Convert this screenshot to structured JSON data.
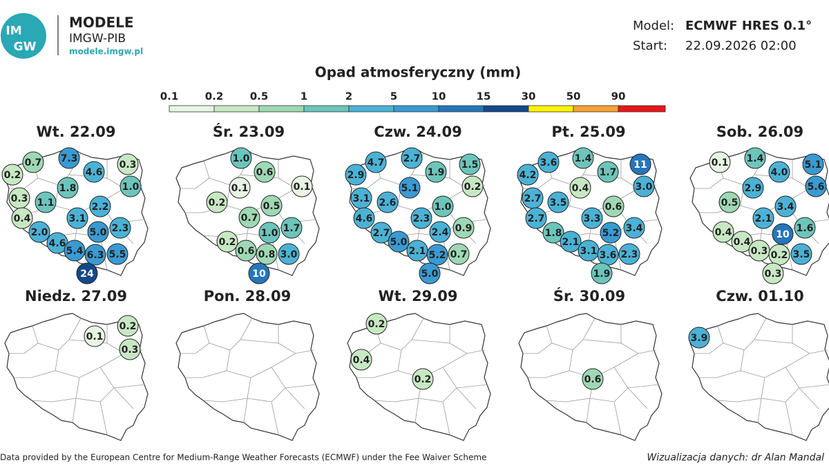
{
  "header": {
    "logo": [
      "IM",
      "GW"
    ],
    "brand": "MODELE",
    "org": "IMGW-PIB",
    "url": "modele.imgw.pl",
    "model_label": "Model:",
    "model": "ECMWF HRES 0.1°",
    "start_label": "Start:",
    "start": "22.09.2026 02:00"
  },
  "legend": {
    "title": "Opad atmosferyczny (mm)",
    "ticks": [
      0.1,
      0.2,
      0.5,
      1,
      2,
      5,
      10,
      15,
      30,
      50,
      90
    ],
    "colors": [
      "#e8f5e4",
      "#c8e8c4",
      "#9fd8b4",
      "#6cc5bb",
      "#4bb2d6",
      "#3a9ad2",
      "#2676bb",
      "#13498a",
      "#fff200",
      "#f7a233",
      "#e8161b"
    ]
  },
  "maps": [
    {
      "title": "Wt. 22.09",
      "values": [
        0.7,
        7.3,
        4.6,
        0.3,
        0.2,
        1.0,
        1.8,
        0.3,
        1.1,
        2.2,
        0.4,
        3.1,
        5.0,
        2.3,
        2.0,
        4.6,
        5.4,
        6.3,
        5.5,
        24
      ],
      "value_labels": [
        "0.7",
        "7.3",
        "4.6",
        "0.3",
        "0.2",
        "1.0",
        "1.8",
        "0.3",
        "1.1",
        "2.2",
        "0.4",
        "3.1",
        "5.0",
        "2.3",
        "2.0",
        "4.6",
        "5.4",
        "6.3",
        "5.5",
        "24"
      ]
    },
    {
      "title": "Śr. 23.09",
      "values": [
        1.0,
        0.6,
        0.1,
        0.1,
        0.2,
        0.5,
        0.7,
        1.0,
        1.7,
        0.2,
        0.6,
        0.8,
        3.0,
        10
      ],
      "value_labels": [
        "1.0",
        "0.6",
        "0.1",
        "0.1",
        "0.2",
        "0.5",
        "0.7",
        "1.0",
        "1.7",
        "0.2",
        "0.6",
        "0.8",
        "3.0",
        "10"
      ]
    },
    {
      "title": "Czw. 24.09",
      "values": [
        4.7,
        2.7,
        1.9,
        1.5,
        2.9,
        5.1,
        0.2,
        3.1,
        2.6,
        1.0,
        4.6,
        2.3,
        2.7,
        2.4,
        0.9,
        5.0,
        2.1,
        5.2,
        0.7,
        5.0
      ],
      "value_labels": [
        "4.7",
        "2.7",
        "1.9",
        "1.5",
        "2.9",
        "5.1",
        "0.2",
        "3.1",
        "2.6",
        "1.0",
        "4.6",
        "2.3",
        "2.7",
        "2.4",
        "0.9",
        "5.0",
        "2.1",
        "5.2",
        "0.7",
        "5.0"
      ]
    },
    {
      "title": "Pt. 25.09",
      "values": [
        3.6,
        1.4,
        1.7,
        11,
        4.2,
        0.4,
        3.0,
        2.7,
        3.5,
        0.6,
        2.7,
        3.3,
        5.2,
        3.4,
        1.8,
        2.1,
        3.1,
        3.6,
        2.3,
        1.9
      ],
      "value_labels": [
        "3.6",
        "1.4",
        "1.7",
        "11",
        "4.2",
        "0.4",
        "3.0",
        "2.7",
        "3.5",
        "0.6",
        "2.7",
        "3.3",
        "5.2",
        "3.4",
        "1.8",
        "2.1",
        "3.1",
        "3.6",
        "2.3",
        "1.9"
      ]
    },
    {
      "title": "Sob. 26.09",
      "values": [
        0.1,
        1.4,
        4.0,
        5.1,
        2.9,
        5.6,
        0.5,
        3.4,
        2.1,
        10,
        1.6,
        0.4,
        0.4,
        0.3,
        0.2,
        3.5,
        0.3
      ],
      "value_labels": [
        "0.1",
        "1.4",
        "4.0",
        "5.1",
        "2.9",
        "5.6",
        "0.5",
        "3.4",
        "2.1",
        "10",
        "1.6",
        "0.4",
        "0.4",
        "0.3",
        "0.2",
        "3.5",
        "0.3"
      ]
    },
    {
      "title": "Niedz. 27.09",
      "values": [
        0.1,
        0.2,
        0.3
      ],
      "value_labels": [
        "0.1",
        "0.2",
        "0.3"
      ]
    },
    {
      "title": "Pon. 28.09",
      "values": [],
      "value_labels": []
    },
    {
      "title": "Wt. 29.09",
      "values": [
        0.2,
        0.4,
        0.2
      ],
      "value_labels": [
        "0.2",
        "0.4",
        "0.2"
      ]
    },
    {
      "title": "Śr. 30.09",
      "values": [
        0.6
      ],
      "value_labels": [
        "0.6"
      ]
    },
    {
      "title": "Czw. 01.10",
      "values": [
        3.9
      ],
      "value_labels": [
        "3.9"
      ]
    }
  ],
  "footer": {
    "source": "Data provided by the European Centre for Medium-Range Weather Forecasts (ECMWF) under the Fee Waiver Scheme",
    "credit": "Wizualizacja danych: dr Alan Mandal"
  }
}
